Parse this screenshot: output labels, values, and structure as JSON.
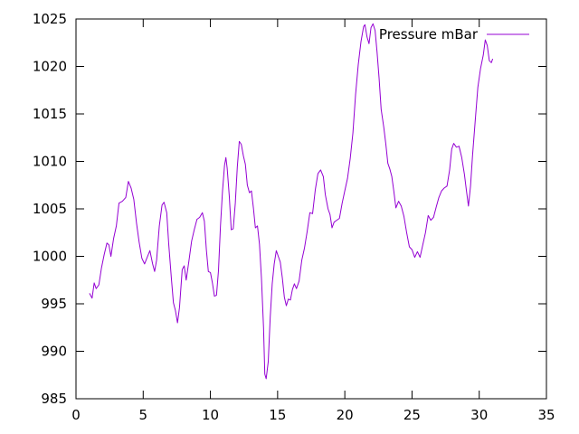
{
  "chart_data": {
    "type": "line",
    "title": "",
    "xlabel": "",
    "ylabel": "",
    "xlim": [
      0,
      35
    ],
    "ylim": [
      985,
      1025
    ],
    "xticks": [
      0,
      5,
      10,
      15,
      20,
      25,
      30,
      35
    ],
    "yticks": [
      985,
      990,
      995,
      1000,
      1005,
      1010,
      1015,
      1020,
      1025
    ],
    "grid": false,
    "legend": {
      "position": "top-right"
    },
    "series": [
      {
        "name": "Pressure mBar",
        "color": "#9400d3",
        "points": [
          [
            1.0,
            996.1
          ],
          [
            1.2,
            995.6
          ],
          [
            1.35,
            997.2
          ],
          [
            1.5,
            996.6
          ],
          [
            1.7,
            997.0
          ],
          [
            1.9,
            998.8
          ],
          [
            2.1,
            1000.2
          ],
          [
            2.3,
            1001.4
          ],
          [
            2.45,
            1001.2
          ],
          [
            2.6,
            1000.0
          ],
          [
            2.8,
            1001.9
          ],
          [
            3.0,
            1003.2
          ],
          [
            3.2,
            1005.6
          ],
          [
            3.45,
            1005.8
          ],
          [
            3.7,
            1006.2
          ],
          [
            3.9,
            1007.9
          ],
          [
            4.1,
            1007.2
          ],
          [
            4.3,
            1006.0
          ],
          [
            4.5,
            1003.5
          ],
          [
            4.7,
            1001.5
          ],
          [
            4.9,
            999.8
          ],
          [
            5.1,
            999.2
          ],
          [
            5.3,
            999.9
          ],
          [
            5.5,
            1000.6
          ],
          [
            5.7,
            999.2
          ],
          [
            5.85,
            998.4
          ],
          [
            6.0,
            999.6
          ],
          [
            6.2,
            1003.2
          ],
          [
            6.4,
            1005.4
          ],
          [
            6.55,
            1005.7
          ],
          [
            6.75,
            1004.6
          ],
          [
            6.9,
            1001.3
          ],
          [
            7.1,
            997.6
          ],
          [
            7.25,
            995.1
          ],
          [
            7.4,
            994.3
          ],
          [
            7.55,
            993.0
          ],
          [
            7.7,
            994.6
          ],
          [
            7.9,
            998.6
          ],
          [
            8.05,
            999.0
          ],
          [
            8.2,
            997.5
          ],
          [
            8.4,
            999.5
          ],
          [
            8.6,
            1001.6
          ],
          [
            8.8,
            1002.8
          ],
          [
            9.0,
            1003.9
          ],
          [
            9.2,
            1004.1
          ],
          [
            9.4,
            1004.6
          ],
          [
            9.55,
            1003.7
          ],
          [
            9.7,
            1000.7
          ],
          [
            9.85,
            998.4
          ],
          [
            10.0,
            998.3
          ],
          [
            10.15,
            997.2
          ],
          [
            10.3,
            995.8
          ],
          [
            10.45,
            995.9
          ],
          [
            10.6,
            998.5
          ],
          [
            10.75,
            1003.2
          ],
          [
            10.9,
            1006.8
          ],
          [
            11.05,
            1009.6
          ],
          [
            11.15,
            1010.4
          ],
          [
            11.25,
            1009.3
          ],
          [
            11.4,
            1006.4
          ],
          [
            11.55,
            1002.8
          ],
          [
            11.7,
            1002.9
          ],
          [
            11.85,
            1005.6
          ],
          [
            12.0,
            1009.4
          ],
          [
            12.15,
            1012.1
          ],
          [
            12.3,
            1011.8
          ],
          [
            12.45,
            1010.6
          ],
          [
            12.6,
            1009.7
          ],
          [
            12.75,
            1007.5
          ],
          [
            12.9,
            1006.7
          ],
          [
            13.05,
            1006.9
          ],
          [
            13.2,
            1005.1
          ],
          [
            13.35,
            1003.0
          ],
          [
            13.5,
            1003.2
          ],
          [
            13.65,
            1001.3
          ],
          [
            13.8,
            997.7
          ],
          [
            13.95,
            992.5
          ],
          [
            14.05,
            987.6
          ],
          [
            14.15,
            987.1
          ],
          [
            14.3,
            988.9
          ],
          [
            14.45,
            993.6
          ],
          [
            14.6,
            997.1
          ],
          [
            14.75,
            999.2
          ],
          [
            14.9,
            1000.6
          ],
          [
            15.05,
            1000.0
          ],
          [
            15.2,
            999.4
          ],
          [
            15.35,
            997.7
          ],
          [
            15.5,
            995.7
          ],
          [
            15.65,
            994.8
          ],
          [
            15.8,
            995.5
          ],
          [
            15.95,
            995.4
          ],
          [
            16.1,
            996.5
          ],
          [
            16.25,
            997.1
          ],
          [
            16.4,
            996.6
          ],
          [
            16.6,
            997.4
          ],
          [
            16.8,
            999.6
          ],
          [
            17.0,
            1000.9
          ],
          [
            17.2,
            1002.6
          ],
          [
            17.4,
            1004.6
          ],
          [
            17.6,
            1004.5
          ],
          [
            17.8,
            1007.0
          ],
          [
            18.0,
            1008.7
          ],
          [
            18.2,
            1009.1
          ],
          [
            18.4,
            1008.4
          ],
          [
            18.55,
            1006.5
          ],
          [
            18.75,
            1005.0
          ],
          [
            18.9,
            1004.4
          ],
          [
            19.05,
            1003.0
          ],
          [
            19.2,
            1003.6
          ],
          [
            19.4,
            1003.8
          ],
          [
            19.6,
            1004.0
          ],
          [
            19.8,
            1005.6
          ],
          [
            20.0,
            1006.9
          ],
          [
            20.2,
            1008.2
          ],
          [
            20.4,
            1010.3
          ],
          [
            20.6,
            1013.0
          ],
          [
            20.8,
            1017.0
          ],
          [
            21.0,
            1020.2
          ],
          [
            21.2,
            1022.6
          ],
          [
            21.4,
            1024.2
          ],
          [
            21.5,
            1024.4
          ],
          [
            21.65,
            1023.1
          ],
          [
            21.8,
            1022.4
          ],
          [
            21.95,
            1024.1
          ],
          [
            22.1,
            1024.5
          ],
          [
            22.25,
            1023.8
          ],
          [
            22.4,
            1021.5
          ],
          [
            22.55,
            1018.8
          ],
          [
            22.7,
            1015.5
          ],
          [
            22.9,
            1013.6
          ],
          [
            23.05,
            1011.8
          ],
          [
            23.2,
            1009.8
          ],
          [
            23.35,
            1009.2
          ],
          [
            23.5,
            1008.4
          ],
          [
            23.65,
            1006.8
          ],
          [
            23.8,
            1005.1
          ],
          [
            24.0,
            1005.8
          ],
          [
            24.2,
            1005.3
          ],
          [
            24.4,
            1004.2
          ],
          [
            24.6,
            1002.5
          ],
          [
            24.8,
            1001.0
          ],
          [
            25.0,
            1000.7
          ],
          [
            25.2,
            999.9
          ],
          [
            25.4,
            1000.5
          ],
          [
            25.6,
            999.9
          ],
          [
            25.8,
            1001.2
          ],
          [
            26.0,
            1002.5
          ],
          [
            26.2,
            1004.3
          ],
          [
            26.4,
            1003.8
          ],
          [
            26.6,
            1004.1
          ],
          [
            26.8,
            1005.2
          ],
          [
            27.0,
            1006.2
          ],
          [
            27.2,
            1006.9
          ],
          [
            27.4,
            1007.2
          ],
          [
            27.6,
            1007.4
          ],
          [
            27.8,
            1009.1
          ],
          [
            27.95,
            1011.3
          ],
          [
            28.1,
            1011.9
          ],
          [
            28.3,
            1011.5
          ],
          [
            28.5,
            1011.6
          ],
          [
            28.7,
            1010.4
          ],
          [
            28.9,
            1008.6
          ],
          [
            29.05,
            1006.9
          ],
          [
            29.2,
            1005.3
          ],
          [
            29.35,
            1007.4
          ],
          [
            29.5,
            1010.6
          ],
          [
            29.7,
            1014.3
          ],
          [
            29.9,
            1017.8
          ],
          [
            30.1,
            1019.8
          ],
          [
            30.3,
            1021.2
          ],
          [
            30.45,
            1022.8
          ],
          [
            30.6,
            1022.2
          ],
          [
            30.75,
            1020.6
          ],
          [
            30.9,
            1020.4
          ],
          [
            31.0,
            1020.8
          ]
        ]
      }
    ]
  }
}
